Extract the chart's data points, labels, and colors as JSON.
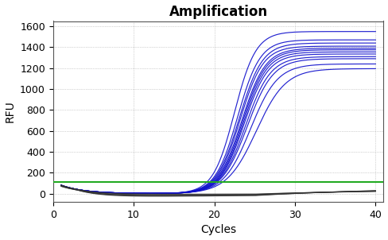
{
  "title": "Amplification",
  "xlabel": "Cycles",
  "ylabel": "RFU",
  "xlim": [
    0,
    41
  ],
  "ylim": [
    -80,
    1650
  ],
  "yticks": [
    0,
    200,
    400,
    600,
    800,
    1000,
    1200,
    1400,
    1600
  ],
  "xticks": [
    0,
    10,
    20,
    30,
    40
  ],
  "background_color": "#ffffff",
  "grid_color": "#888888",
  "threshold_y": 108,
  "threshold_color": "#22aa22",
  "blue_color": "#1111cc",
  "black_color": "#333333",
  "blue_plateaus": [
    1550,
    1470,
    1440,
    1410,
    1390,
    1375,
    1355,
    1335,
    1310,
    1290,
    1240,
    1195
  ],
  "blue_midpoints": [
    22.5,
    22.9,
    23.1,
    23.2,
    23.4,
    23.5,
    23.6,
    23.7,
    23.9,
    24.1,
    24.5,
    25.2
  ],
  "blue_rates": [
    0.75,
    0.72,
    0.7,
    0.7,
    0.68,
    0.68,
    0.68,
    0.67,
    0.65,
    0.63,
    0.6,
    0.55
  ],
  "black_starts": [
    82,
    78,
    75,
    72,
    70
  ],
  "black_mins": [
    -5,
    -10,
    -15,
    -18,
    -22
  ],
  "black_ends": [
    40,
    50,
    55,
    62,
    68
  ],
  "title_fontsize": 12,
  "axis_label_fontsize": 10,
  "tick_fontsize": 9,
  "figsize": [
    4.88,
    3.02
  ],
  "dpi": 100
}
